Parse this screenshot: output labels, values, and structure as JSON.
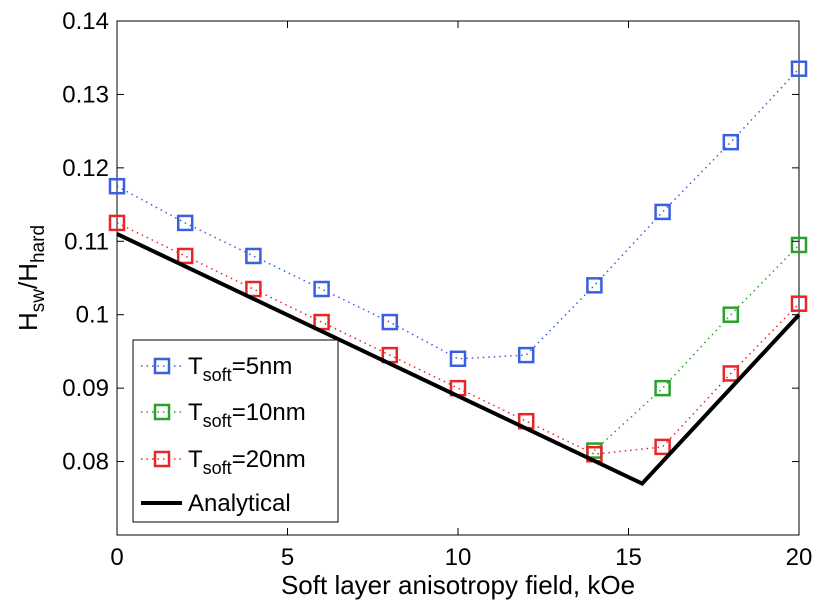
{
  "chart_data": {
    "type": "line",
    "title": "",
    "xlabel": "Soft layer anisotropy field, kOe",
    "ylabel_main": "H",
    "ylabel_sub1": "sw",
    "ylabel_slash": "/H",
    "ylabel_sub2": "hard",
    "xlim": [
      0,
      20
    ],
    "ylim": [
      0.07,
      0.14
    ],
    "xticks": [
      0,
      5,
      10,
      15,
      20
    ],
    "xtick_labels": [
      "0",
      "5",
      "10",
      "15",
      "20"
    ],
    "yticks": [
      0.08,
      0.09,
      0.1,
      0.11,
      0.12,
      0.13,
      0.14
    ],
    "ytick_labels": [
      "0.08",
      "0.09",
      "0.1",
      "0.11",
      "0.12",
      "0.13",
      "0.14"
    ],
    "grid": false,
    "legend_position": "bottom-left",
    "series": [
      {
        "name": "Tsoft=5nm",
        "label_main": "T",
        "label_sub": "soft",
        "label_rest": "=5nm",
        "color": "#3a5fe0",
        "style": "dotted-square",
        "x": [
          0,
          2,
          4,
          6,
          8,
          10,
          12,
          14,
          16,
          18,
          20
        ],
        "y": [
          0.1175,
          0.1125,
          0.108,
          0.1035,
          0.099,
          0.094,
          0.0945,
          0.104,
          0.114,
          0.1235,
          0.1335
        ]
      },
      {
        "name": "Tsoft=10nm",
        "label_main": "T",
        "label_sub": "soft",
        "label_rest": "=10nm",
        "color": "#2ca02c",
        "style": "dotted-square",
        "x": [
          14,
          16,
          18,
          20
        ],
        "y": [
          0.0815,
          0.09,
          0.1,
          0.1095
        ]
      },
      {
        "name": "Tsoft=20nm",
        "label_main": "T",
        "label_sub": "soft",
        "label_rest": "=20nm",
        "color": "#e8262a",
        "style": "dotted-square",
        "x": [
          0,
          2,
          4,
          6,
          8,
          10,
          12,
          14,
          16,
          18,
          20
        ],
        "y": [
          0.1125,
          0.108,
          0.1035,
          0.099,
          0.0945,
          0.09,
          0.0855,
          0.081,
          0.082,
          0.092,
          0.1015
        ]
      },
      {
        "name": "Analytical",
        "label_main": "Analytical",
        "label_sub": "",
        "label_rest": "",
        "color": "#000000",
        "style": "solid",
        "x": [
          0,
          15.4,
          20
        ],
        "y": [
          0.111,
          0.077,
          0.1
        ]
      }
    ]
  }
}
